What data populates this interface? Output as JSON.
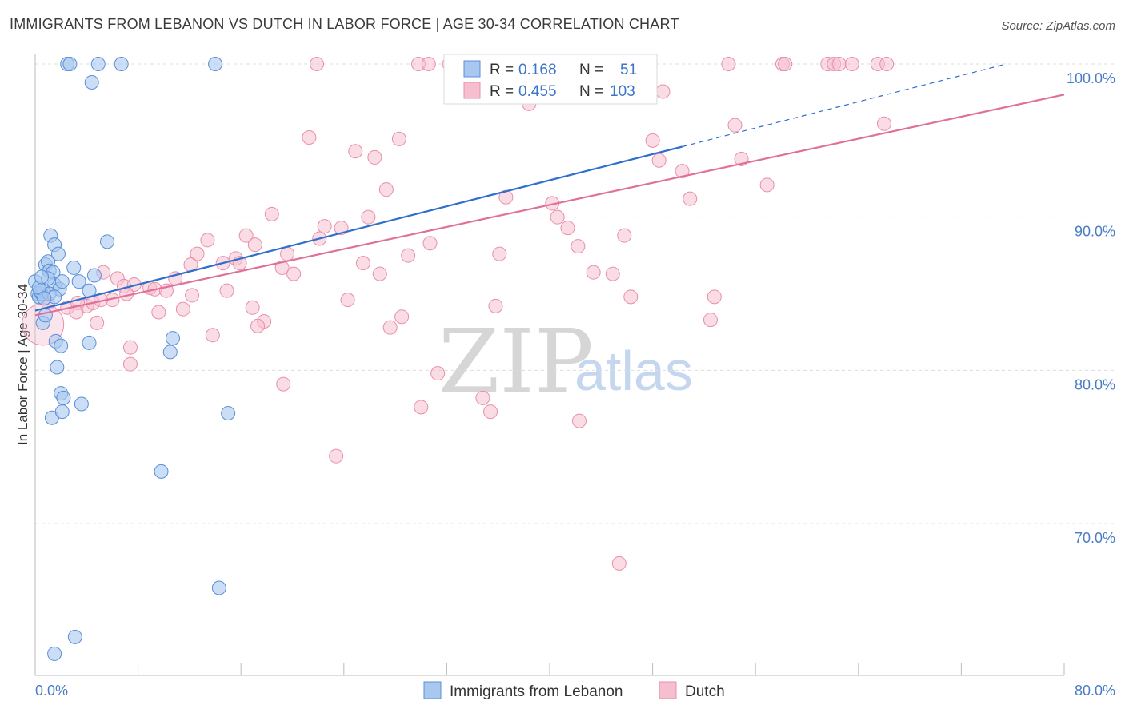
{
  "title": "IMMIGRANTS FROM LEBANON VS DUTCH IN LABOR FORCE | AGE 30-34 CORRELATION CHART",
  "source": "Source: ZipAtlas.com",
  "watermark": {
    "zip": "ZIP",
    "atlas": "atlas"
  },
  "legend_box": {
    "rows": [
      {
        "r_label": "R =",
        "r_value": "0.168",
        "n_label": "N =",
        "n_value": "51"
      },
      {
        "r_label": "R =",
        "r_value": "0.455",
        "n_label": "N =",
        "n_value": "103"
      }
    ]
  },
  "chart_data": {
    "type": "scatter",
    "title": "IMMIGRANTS FROM LEBANON VS DUTCH IN LABOR FORCE | AGE 30-34 CORRELATION CHART",
    "xlabel": "",
    "ylabel": "In Labor Force | Age 30-34",
    "xlim": [
      0,
      80
    ],
    "ylim": [
      60.5,
      102.5
    ],
    "x_tick_labels": [
      "0.0%",
      "80.0%"
    ],
    "y_ticks": [
      70,
      80,
      90,
      100
    ],
    "y_tick_labels": [
      "70.0%",
      "80.0%",
      "90.0%",
      "100.0%"
    ],
    "grid": true,
    "legend_position": "bottom-center",
    "colors": {
      "lebanon_fill": "#a9c8f0",
      "lebanon_stroke": "#5b8fd6",
      "lebanon_line": "#2e6fce",
      "dutch_fill": "#f6bfd0",
      "dutch_stroke": "#e88fab",
      "dutch_line": "#e0709a",
      "grid": "#dddddd",
      "axis": "#bbbbbb"
    },
    "series": [
      {
        "name": "Immigrants from Lebanon",
        "R": 0.168,
        "N": 51,
        "trend": {
          "x0": 0.0,
          "y0": 83.9,
          "x1": 50.3,
          "y1": 94.6,
          "dash_x1": 75.5,
          "dash_y1": 100.0
        },
        "points": [
          [
            2.5,
            100.0
          ],
          [
            2.7,
            100.0
          ],
          [
            4.9,
            100.0
          ],
          [
            6.7,
            100.0
          ],
          [
            14.0,
            100.0
          ],
          [
            4.4,
            98.8
          ],
          [
            0.0,
            85.8
          ],
          [
            0.2,
            85.0
          ],
          [
            0.3,
            84.8
          ],
          [
            0.5,
            85.0
          ],
          [
            0.6,
            85.3
          ],
          [
            0.8,
            86.9
          ],
          [
            1.0,
            87.1
          ],
          [
            1.1,
            86.5
          ],
          [
            1.2,
            88.8
          ],
          [
            1.4,
            86.4
          ],
          [
            1.5,
            85.6
          ],
          [
            1.5,
            88.2
          ],
          [
            1.8,
            87.6
          ],
          [
            1.9,
            85.3
          ],
          [
            2.1,
            85.8
          ],
          [
            3.0,
            86.7
          ],
          [
            3.4,
            85.8
          ],
          [
            4.2,
            85.2
          ],
          [
            4.6,
            86.2
          ],
          [
            5.6,
            88.4
          ],
          [
            0.4,
            85.2
          ],
          [
            0.6,
            83.1
          ],
          [
            0.8,
            83.6
          ],
          [
            1.1,
            85.0
          ],
          [
            1.5,
            84.8
          ],
          [
            1.6,
            81.9
          ],
          [
            2.0,
            81.6
          ],
          [
            1.7,
            80.2
          ],
          [
            2.0,
            78.5
          ],
          [
            2.2,
            78.2
          ],
          [
            1.3,
            76.9
          ],
          [
            2.1,
            77.3
          ],
          [
            3.6,
            77.8
          ],
          [
            4.2,
            81.8
          ],
          [
            10.5,
            81.2
          ],
          [
            10.7,
            82.1
          ],
          [
            15.0,
            77.2
          ],
          [
            9.8,
            73.4
          ],
          [
            14.3,
            65.8
          ],
          [
            3.1,
            62.6
          ],
          [
            1.5,
            61.5
          ],
          [
            0.3,
            85.4
          ],
          [
            0.7,
            84.7
          ],
          [
            1.0,
            86.0
          ],
          [
            0.5,
            86.1
          ]
        ]
      },
      {
        "name": "Dutch",
        "R": 0.455,
        "N": 103,
        "trend": {
          "x0": 0.0,
          "y0": 83.6,
          "x1": 80.0,
          "y1": 98.0
        },
        "points": [
          [
            21.9,
            100.0
          ],
          [
            29.8,
            100.0
          ],
          [
            30.6,
            100.0
          ],
          [
            32.2,
            100.0
          ],
          [
            32.6,
            100.0
          ],
          [
            34.4,
            100.0
          ],
          [
            37.7,
            100.0
          ],
          [
            38.1,
            100.0
          ],
          [
            45.1,
            100.0
          ],
          [
            47.7,
            100.0
          ],
          [
            53.9,
            100.0
          ],
          [
            58.1,
            100.0
          ],
          [
            58.3,
            100.0
          ],
          [
            61.6,
            100.0
          ],
          [
            62.1,
            100.0
          ],
          [
            62.5,
            100.0
          ],
          [
            63.5,
            100.0
          ],
          [
            65.5,
            100.0
          ],
          [
            66.2,
            100.0
          ],
          [
            48.8,
            98.2
          ],
          [
            38.4,
            97.4
          ],
          [
            54.4,
            96.0
          ],
          [
            66.0,
            96.1
          ],
          [
            21.3,
            95.2
          ],
          [
            28.3,
            95.1
          ],
          [
            24.9,
            94.3
          ],
          [
            26.4,
            93.9
          ],
          [
            48.0,
            95.0
          ],
          [
            48.5,
            93.7
          ],
          [
            50.3,
            93.0
          ],
          [
            54.9,
            93.8
          ],
          [
            56.9,
            92.1
          ],
          [
            27.3,
            91.8
          ],
          [
            36.6,
            91.3
          ],
          [
            40.2,
            90.9
          ],
          [
            50.9,
            91.2
          ],
          [
            18.4,
            90.2
          ],
          [
            22.5,
            89.4
          ],
          [
            25.9,
            90.0
          ],
          [
            40.6,
            90.0
          ],
          [
            41.4,
            89.3
          ],
          [
            23.8,
            89.3
          ],
          [
            16.4,
            88.8
          ],
          [
            22.1,
            88.6
          ],
          [
            30.7,
            88.3
          ],
          [
            42.2,
            88.1
          ],
          [
            45.8,
            88.8
          ],
          [
            13.4,
            88.5
          ],
          [
            17.1,
            88.2
          ],
          [
            19.6,
            87.6
          ],
          [
            36.1,
            87.6
          ],
          [
            29.0,
            87.5
          ],
          [
            12.6,
            87.6
          ],
          [
            15.6,
            87.3
          ],
          [
            14.6,
            87.0
          ],
          [
            15.9,
            87.0
          ],
          [
            25.5,
            87.0
          ],
          [
            19.2,
            86.7
          ],
          [
            12.1,
            86.9
          ],
          [
            20.1,
            86.3
          ],
          [
            26.8,
            86.3
          ],
          [
            43.4,
            86.4
          ],
          [
            44.9,
            86.3
          ],
          [
            5.3,
            86.4
          ],
          [
            6.4,
            86.0
          ],
          [
            6.9,
            85.5
          ],
          [
            7.7,
            85.6
          ],
          [
            8.9,
            85.4
          ],
          [
            9.3,
            85.3
          ],
          [
            10.2,
            85.2
          ],
          [
            10.9,
            86.0
          ],
          [
            14.9,
            85.2
          ],
          [
            7.1,
            85.0
          ],
          [
            6.0,
            84.6
          ],
          [
            4.0,
            84.2
          ],
          [
            4.5,
            84.4
          ],
          [
            5.1,
            84.6
          ],
          [
            1.0,
            84.4
          ],
          [
            2.5,
            84.1
          ],
          [
            3.3,
            84.4
          ],
          [
            3.2,
            83.8
          ],
          [
            9.6,
            83.8
          ],
          [
            11.5,
            84.0
          ],
          [
            12.2,
            84.9
          ],
          [
            16.9,
            84.1
          ],
          [
            17.8,
            83.2
          ],
          [
            24.3,
            84.6
          ],
          [
            28.5,
            83.5
          ],
          [
            35.8,
            84.2
          ],
          [
            46.3,
            84.8
          ],
          [
            52.8,
            84.8
          ],
          [
            52.5,
            83.3
          ],
          [
            17.3,
            82.9
          ],
          [
            27.6,
            82.8
          ],
          [
            4.8,
            83.1
          ],
          [
            13.8,
            82.3
          ],
          [
            7.4,
            81.5
          ],
          [
            7.4,
            80.4
          ],
          [
            19.3,
            79.1
          ],
          [
            31.3,
            79.8
          ],
          [
            34.8,
            78.2
          ],
          [
            30.0,
            77.6
          ],
          [
            35.4,
            77.3
          ],
          [
            42.3,
            76.7
          ],
          [
            23.4,
            74.4
          ],
          [
            45.4,
            67.4
          ]
        ],
        "large_points": [
          [
            0.6,
            83.0
          ]
        ]
      }
    ]
  },
  "bottom_legend": [
    "Immigrants from Lebanon",
    "Dutch"
  ]
}
